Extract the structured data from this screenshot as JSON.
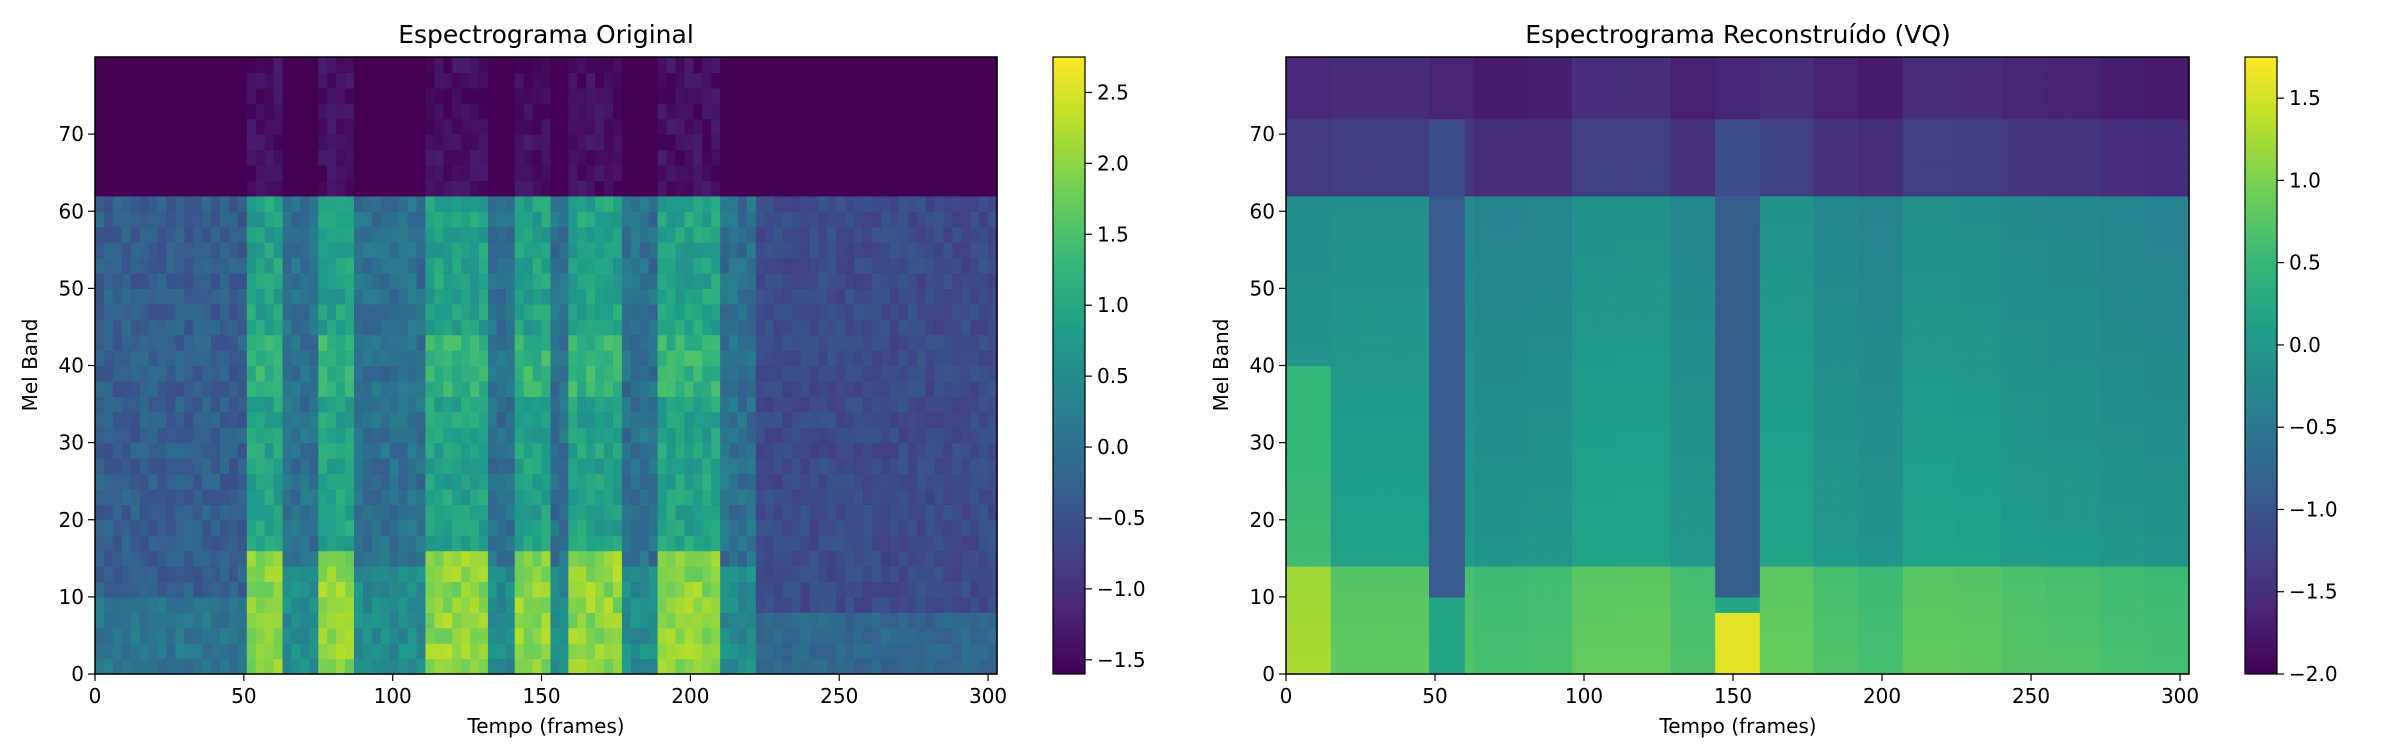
{
  "chart_data": [
    {
      "type": "heatmap",
      "title": "Espectrograma Original",
      "xlabel": "Tempo (frames)",
      "ylabel": "Mel Band",
      "xlim": [
        0,
        303
      ],
      "ylim": [
        0,
        80
      ],
      "xticks": [
        "0",
        "50",
        "100",
        "150",
        "200",
        "250",
        "300"
      ],
      "yticks": [
        "0",
        "10",
        "20",
        "30",
        "40",
        "50",
        "60",
        "70"
      ],
      "colormap": "viridis",
      "colorbar": {
        "min": -1.6,
        "max": 2.75,
        "ticks": [
          "2.5",
          "2.0",
          "1.5",
          "1.0",
          "0.5",
          "0.0",
          "−0.5",
          "−1.0",
          "−1.5"
        ],
        "tick_values": [
          2.5,
          2.0,
          1.5,
          1.0,
          0.5,
          0.0,
          -0.5,
          -1.0,
          -1.5
        ]
      },
      "structure": {
        "high_band_cutoff": 62,
        "high_band_value": -1.6,
        "voiced_segments": [
          [
            52,
            62
          ],
          [
            74,
            88
          ],
          [
            112,
            132
          ],
          [
            140,
            152
          ],
          [
            160,
            178
          ],
          [
            190,
            210
          ]
        ],
        "speech_end_frame": 222
      }
    },
    {
      "type": "heatmap",
      "title": "Espectrograma Reconstruído (VQ)",
      "xlabel": "Tempo (frames)",
      "ylabel": "Mel Band",
      "xlim": [
        0,
        303
      ],
      "ylim": [
        0,
        80
      ],
      "xticks": [
        "0",
        "50",
        "100",
        "150",
        "200",
        "250",
        "300"
      ],
      "yticks": [
        "0",
        "10",
        "20",
        "30",
        "40",
        "50",
        "60",
        "70"
      ],
      "colormap": "viridis",
      "colorbar": {
        "min": -2.0,
        "max": 1.75,
        "ticks": [
          "1.5",
          "1.0",
          "0.5",
          "0.0",
          "−0.5",
          "−1.0",
          "−1.5",
          "−2.0"
        ],
        "tick_values": [
          1.5,
          1.0,
          0.5,
          0.0,
          -0.5,
          -1.0,
          -1.5,
          -2.0
        ]
      },
      "structure": {
        "high_band_cutoff": 62,
        "block_boundaries": [
          0,
          16,
          48,
          64,
          80,
          96,
          112,
          128,
          144,
          160,
          176,
          192,
          208,
          224,
          240,
          256,
          272,
          288,
          303
        ],
        "dark_segments": [
          [
            48,
            60
          ],
          [
            145,
            160
          ]
        ]
      }
    }
  ],
  "colors": {
    "viridis": [
      "#440154",
      "#482878",
      "#3e4989",
      "#31688e",
      "#26828e",
      "#1f9e89",
      "#35b779",
      "#6ece58",
      "#b5de2b",
      "#fde725"
    ]
  }
}
